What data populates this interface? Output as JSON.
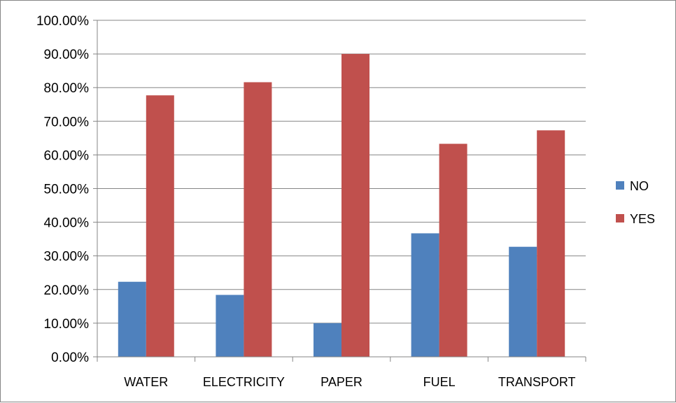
{
  "chart_data": {
    "type": "bar",
    "title": "",
    "xlabel": "",
    "ylabel": "",
    "categories": [
      "WATER",
      "ELECTRICITY",
      "PAPER",
      "FUEL",
      "TRANSPORT"
    ],
    "series": [
      {
        "name": "NO",
        "color": "#4f81bd",
        "values": [
          22.3,
          18.4,
          10.0,
          36.7,
          32.7
        ]
      },
      {
        "name": "YES",
        "color": "#c0504d",
        "values": [
          77.7,
          81.6,
          90.0,
          63.3,
          67.3
        ]
      }
    ],
    "ylim": [
      0,
      100
    ],
    "yticks": [
      "0.00%",
      "10.00%",
      "20.00%",
      "30.00%",
      "40.00%",
      "50.00%",
      "60.00%",
      "70.00%",
      "80.00%",
      "90.00%",
      "100.00%"
    ],
    "grid": true,
    "legend": "right"
  }
}
